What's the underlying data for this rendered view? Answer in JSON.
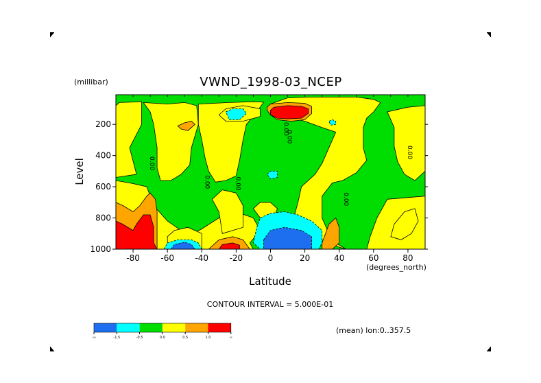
{
  "chart_data": {
    "type": "heatmap",
    "title": "VWND_1998-03_NCEP",
    "xlabel": "Latitude",
    "xunit": "(degrees_north)",
    "ylabel": "Level",
    "yunit": "(millibar)",
    "xlim": [
      -90,
      90
    ],
    "ylim": [
      1000,
      10
    ],
    "x_ticks": [
      -80,
      -60,
      -40,
      -20,
      0,
      20,
      40,
      60,
      80
    ],
    "x_tick_labels": [
      "-80",
      "-60",
      "-40",
      "-20",
      "0",
      "20",
      "40",
      "60",
      "80"
    ],
    "y_ticks": [
      200,
      400,
      600,
      800,
      1000
    ],
    "y_tick_labels": [
      "200",
      "400",
      "600",
      "800",
      "1000"
    ],
    "contour_interval_text": "CONTOUR INTERVAL = 5.000E-01",
    "mean_text": "(mean) lon:0..357.5",
    "contour_labels": [
      {
        "lat": -70,
        "lev": 450,
        "text": "0.00"
      },
      {
        "lat": -38,
        "lev": 570,
        "text": "0.00"
      },
      {
        "lat": -20,
        "lev": 580,
        "text": "0.00"
      },
      {
        "lat": 8,
        "lev": 230,
        "text": "0.00"
      },
      {
        "lat": 10,
        "lev": 280,
        "text": "0.00"
      },
      {
        "lat": 43,
        "lev": 680,
        "text": "0.00"
      },
      {
        "lat": 80,
        "lev": 380,
        "text": "0.00"
      }
    ],
    "legend": {
      "bins": [
        {
          "color": "#1e6ef0",
          "label": "-∞"
        },
        {
          "color": "#00ffff",
          "label": "-1.5"
        },
        {
          "color": "#00dd00",
          "label": "-0.5"
        },
        {
          "color": "#ffff00",
          "label": "0.0"
        },
        {
          "color": "#ffa500",
          "label": "0.5"
        },
        {
          "color": "#ff0000",
          "label": "1.0"
        }
      ],
      "end_label": "∞"
    },
    "regions": [
      {
        "level": 0,
        "shape": "rect",
        "x0": -90,
        "x1": 90,
        "y0": 10,
        "y1": 1000
      },
      {
        "level": 1,
        "pts": [
          [
            -90,
            1000
          ],
          [
            -90,
            560
          ],
          [
            -80,
            580
          ],
          [
            -72,
            600
          ],
          [
            -68,
            720
          ],
          [
            -60,
            820
          ],
          [
            -52,
            880
          ],
          [
            -46,
            950
          ],
          [
            -40,
            1000
          ]
        ]
      },
      {
        "level": 1,
        "pts": [
          [
            -90,
            80
          ],
          [
            -88,
            60
          ],
          [
            -75,
            55
          ],
          [
            -75,
            200
          ],
          [
            -82,
            350
          ],
          [
            -78,
            520
          ],
          [
            -90,
            540
          ]
        ]
      },
      {
        "level": 1,
        "pts": [
          [
            -74,
            60
          ],
          [
            -60,
            70
          ],
          [
            -50,
            60
          ],
          [
            -43,
            80
          ],
          [
            -42,
            200
          ],
          [
            -46,
            350
          ],
          [
            -47,
            460
          ],
          [
            -52,
            520
          ],
          [
            -58,
            560
          ],
          [
            -64,
            560
          ],
          [
            -66,
            480
          ],
          [
            -66,
            350
          ],
          [
            -68,
            200
          ],
          [
            -70,
            120
          ]
        ]
      },
      {
        "level": 1,
        "pts": [
          [
            -42,
            70
          ],
          [
            -24,
            60
          ],
          [
            -10,
            55
          ],
          [
            -4,
            58
          ],
          [
            -8,
            120
          ],
          [
            -14,
            200
          ],
          [
            -16,
            300
          ],
          [
            -18,
            430
          ],
          [
            -20,
            530
          ],
          [
            -26,
            560
          ],
          [
            -32,
            570
          ],
          [
            -36,
            500
          ],
          [
            -38,
            420
          ],
          [
            -40,
            300
          ],
          [
            -42,
            200
          ]
        ]
      },
      {
        "level": 1,
        "pts": [
          [
            0,
            70
          ],
          [
            10,
            30
          ],
          [
            24,
            25
          ],
          [
            50,
            25
          ],
          [
            60,
            40
          ],
          [
            64,
            60
          ],
          [
            60,
            120
          ],
          [
            56,
            160
          ],
          [
            54,
            220
          ],
          [
            54,
            350
          ],
          [
            56,
            430
          ],
          [
            50,
            510
          ],
          [
            42,
            560
          ],
          [
            36,
            575
          ],
          [
            30,
            660
          ],
          [
            30,
            800
          ],
          [
            34,
            900
          ],
          [
            38,
            960
          ],
          [
            44,
            1000
          ],
          [
            56,
            1000
          ],
          [
            58,
            920
          ],
          [
            62,
            800
          ],
          [
            68,
            680
          ],
          [
            90,
            660
          ],
          [
            90,
            1000
          ],
          [
            46,
            1000
          ],
          [
            44,
            1000
          ],
          [
            38,
            980
          ],
          [
            30,
            940
          ],
          [
            24,
            900
          ],
          [
            18,
            860
          ],
          [
            14,
            780
          ],
          [
            16,
            700
          ],
          [
            18,
            600
          ],
          [
            26,
            520
          ],
          [
            30,
            450
          ],
          [
            34,
            350
          ],
          [
            38,
            250
          ],
          [
            30,
            220
          ],
          [
            20,
            180
          ],
          [
            10,
            150
          ],
          [
            2,
            120
          ]
        ]
      },
      {
        "level": 1,
        "pts": [
          [
            68,
            120
          ],
          [
            80,
            90
          ],
          [
            90,
            80
          ],
          [
            90,
            500
          ],
          [
            84,
            560
          ],
          [
            78,
            520
          ],
          [
            74,
            440
          ],
          [
            72,
            340
          ],
          [
            72,
            220
          ]
        ]
      },
      {
        "level": 1,
        "pts": [
          [
            -52,
            1000
          ],
          [
            -54,
            950
          ],
          [
            -40,
            870
          ],
          [
            -30,
            800
          ],
          [
            -20,
            760
          ],
          [
            -10,
            800
          ],
          [
            -6,
            880
          ],
          [
            -12,
            960
          ],
          [
            -10,
            1000
          ]
        ]
      },
      {
        "level": 1,
        "pts": [
          [
            -28,
            900
          ],
          [
            -30,
            760
          ],
          [
            -34,
            680
          ],
          [
            -28,
            620
          ],
          [
            -20,
            640
          ],
          [
            -16,
            720
          ],
          [
            -16,
            860
          ]
        ]
      },
      {
        "level": 1,
        "pts": [
          [
            -60,
            920
          ],
          [
            -56,
            880
          ],
          [
            -48,
            860
          ],
          [
            -40,
            900
          ],
          [
            -40,
            1000
          ],
          [
            -60,
            1000
          ]
        ]
      },
      {
        "level": 1,
        "pts": [
          [
            -10,
            740
          ],
          [
            -6,
            700
          ],
          [
            0,
            700
          ],
          [
            4,
            740
          ],
          [
            2,
            800
          ],
          [
            -6,
            800
          ]
        ]
      },
      {
        "level": 1,
        "pts": [
          [
            -30,
            140
          ],
          [
            -26,
            100
          ],
          [
            -16,
            80
          ],
          [
            -6,
            100
          ],
          [
            -6,
            150
          ],
          [
            -16,
            180
          ],
          [
            -26,
            180
          ]
        ]
      },
      {
        "level": 1,
        "pts": [
          [
            70,
            920
          ],
          [
            72,
            840
          ],
          [
            78,
            760
          ],
          [
            84,
            740
          ],
          [
            86,
            820
          ],
          [
            82,
            900
          ],
          [
            76,
            940
          ]
        ]
      },
      {
        "level": 2,
        "pts": [
          [
            -44,
            200
          ],
          [
            -46,
            180
          ],
          [
            -50,
            190
          ],
          [
            -54,
            210
          ],
          [
            -52,
            230
          ],
          [
            -48,
            240
          ]
        ]
      },
      {
        "level": 2,
        "pts": [
          [
            -90,
            1000
          ],
          [
            -90,
            700
          ],
          [
            -86,
            720
          ],
          [
            -80,
            760
          ],
          [
            -76,
            720
          ],
          [
            -72,
            660
          ],
          [
            -70,
            640
          ],
          [
            -67,
            680
          ],
          [
            -66,
            760
          ],
          [
            -66,
            860
          ],
          [
            -66,
            940
          ],
          [
            -66,
            1000
          ]
        ]
      },
      {
        "level": 2,
        "pts": [
          [
            -2,
            90
          ],
          [
            0,
            70
          ],
          [
            10,
            60
          ],
          [
            20,
            65
          ],
          [
            24,
            85
          ],
          [
            24,
            130
          ],
          [
            20,
            170
          ],
          [
            12,
            180
          ],
          [
            4,
            170
          ],
          [
            0,
            140
          ],
          [
            -2,
            110
          ]
        ]
      },
      {
        "level": 2,
        "pts": [
          [
            30,
            960
          ],
          [
            32,
            900
          ],
          [
            34,
            840
          ],
          [
            38,
            800
          ],
          [
            40,
            860
          ],
          [
            40,
            960
          ],
          [
            36,
            1000
          ],
          [
            30,
            1000
          ]
        ]
      },
      {
        "level": 2,
        "pts": [
          [
            -36,
            1000
          ],
          [
            -30,
            940
          ],
          [
            -22,
            920
          ],
          [
            -16,
            940
          ],
          [
            -12,
            1000
          ]
        ]
      },
      {
        "level": 3,
        "pts": [
          [
            -90,
            1000
          ],
          [
            -90,
            820
          ],
          [
            -86,
            840
          ],
          [
            -80,
            880
          ],
          [
            -78,
            840
          ],
          [
            -74,
            780
          ],
          [
            -70,
            780
          ],
          [
            -68,
            860
          ],
          [
            -68,
            960
          ],
          [
            -66,
            1000
          ]
        ]
      },
      {
        "level": 3,
        "pts": [
          [
            0,
            110
          ],
          [
            2,
            90
          ],
          [
            10,
            80
          ],
          [
            18,
            85
          ],
          [
            22,
            100
          ],
          [
            22,
            130
          ],
          [
            18,
            160
          ],
          [
            10,
            165
          ],
          [
            4,
            160
          ],
          [
            0,
            140
          ]
        ]
      },
      {
        "level": 3,
        "pts": [
          [
            -30,
            1000
          ],
          [
            -28,
            970
          ],
          [
            -22,
            960
          ],
          [
            -18,
            975
          ],
          [
            -18,
            1000
          ]
        ]
      },
      {
        "level": -1,
        "pts": [
          [
            -62,
            1000
          ],
          [
            -60,
            960
          ],
          [
            -54,
            940
          ],
          [
            -46,
            940
          ],
          [
            -42,
            960
          ],
          [
            -40,
            1000
          ]
        ]
      },
      {
        "level": -1,
        "pts": [
          [
            -8,
            860
          ],
          [
            -6,
            800
          ],
          [
            0,
            770
          ],
          [
            8,
            760
          ],
          [
            16,
            780
          ],
          [
            24,
            820
          ],
          [
            30,
            880
          ],
          [
            30,
            960
          ],
          [
            28,
            1000
          ],
          [
            -6,
            1000
          ],
          [
            -10,
            960
          ]
        ]
      },
      {
        "level": -1,
        "pts": [
          [
            -26,
            120
          ],
          [
            -22,
            100
          ],
          [
            -16,
            100
          ],
          [
            -14,
            130
          ],
          [
            -18,
            170
          ],
          [
            -24,
            170
          ]
        ]
      },
      {
        "level": -1,
        "pts": [
          [
            -2,
            520
          ],
          [
            0,
            500
          ],
          [
            4,
            500
          ],
          [
            4,
            540
          ],
          [
            0,
            550
          ]
        ]
      },
      {
        "level": -1,
        "pts": [
          [
            34,
            180
          ],
          [
            36,
            170
          ],
          [
            38,
            180
          ],
          [
            38,
            200
          ],
          [
            35,
            205
          ]
        ]
      },
      {
        "level": -2,
        "pts": [
          [
            -58,
            1000
          ],
          [
            -56,
            970
          ],
          [
            -50,
            955
          ],
          [
            -46,
            970
          ],
          [
            -44,
            1000
          ]
        ]
      },
      {
        "level": -2,
        "pts": [
          [
            -4,
            940
          ],
          [
            0,
            880
          ],
          [
            8,
            860
          ],
          [
            18,
            880
          ],
          [
            24,
            920
          ],
          [
            24,
            1000
          ],
          [
            -4,
            1000
          ]
        ]
      }
    ]
  }
}
